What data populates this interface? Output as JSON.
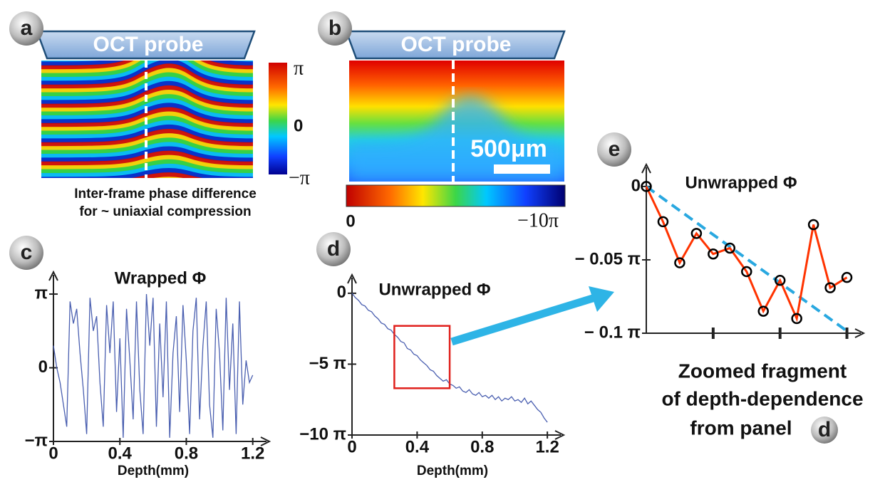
{
  "panel_a": {
    "label": "a",
    "probe": "OCT probe",
    "colorbar_labels": [
      "π",
      "0",
      "−π"
    ],
    "caption": [
      "Inter-frame phase difference",
      "for ~ uniaxial compression"
    ]
  },
  "panel_b": {
    "label": "b",
    "probe": "OCT probe",
    "scale_bar": "500μm",
    "colorbar_labels": [
      "0",
      "−10π"
    ]
  },
  "chart_data": [
    {
      "type": "line",
      "panel": "c",
      "title": "Wrapped Φ",
      "x_label": "Depth(mm)",
      "color": "#4a5fb0",
      "xlim": [
        0,
        1.3
      ],
      "xticks": [
        0,
        0.4,
        0.8,
        1.2
      ],
      "ylim": [
        -1,
        1.3
      ],
      "yticks": [
        {
          "value": -1,
          "label": "−π"
        },
        0,
        {
          "value": 1,
          "label": "π"
        }
      ],
      "x": [
        0,
        0.02,
        0.04,
        0.06,
        0.08,
        0.1,
        0.12,
        0.14,
        0.16,
        0.18,
        0.2,
        0.22,
        0.24,
        0.26,
        0.28,
        0.3,
        0.32,
        0.34,
        0.36,
        0.38,
        0.4,
        0.42,
        0.44,
        0.46,
        0.48,
        0.5,
        0.52,
        0.54,
        0.56,
        0.58,
        0.6,
        0.62,
        0.64,
        0.66,
        0.68,
        0.7,
        0.72,
        0.74,
        0.76,
        0.78,
        0.8,
        0.82,
        0.84,
        0.86,
        0.88,
        0.9,
        0.92,
        0.94,
        0.96,
        0.98,
        1.0,
        1.02,
        1.04,
        1.06,
        1.08,
        1.1,
        1.12,
        1.14,
        1.16,
        1.18,
        1.2
      ],
      "values": [
        0.3,
        0.0,
        -0.2,
        -0.5,
        -0.8,
        0.9,
        0.6,
        0.8,
        0.2,
        -0.3,
        -0.9,
        0.95,
        0.5,
        0.7,
        -0.2,
        -0.8,
        0.85,
        0.2,
        0.9,
        -0.6,
        0.4,
        -0.95,
        0.8,
        0.1,
        -0.7,
        0.9,
        -0.3,
        -0.9,
        1.0,
        0.3,
        0.95,
        -0.8,
        0.6,
        -0.4,
        0.9,
        -0.95,
        0.2,
        0.7,
        -0.6,
        0.85,
        0.1,
        -0.9,
        0.5,
        0.95,
        -0.7,
        0.3,
        0.9,
        -0.5,
        -0.95,
        0.8,
        0.2,
        -0.85,
        0.95,
        -0.3,
        0.6,
        -0.9,
        0.9,
        -0.5,
        0.1,
        -0.2,
        -0.1
      ]
    },
    {
      "type": "line",
      "panel": "d",
      "title": "Unwrapped Φ",
      "x_label": "Depth(mm)",
      "color": "#4a5fb0",
      "xlim": [
        0,
        1.3
      ],
      "xticks": [
        0,
        0.4,
        0.8,
        1.2
      ],
      "ylim": [
        -10,
        1.3
      ],
      "yticks": [
        {
          "value": -10,
          "label": "−10 π"
        },
        {
          "value": -5,
          "label": "−5 π"
        },
        0
      ],
      "zoom_box": {
        "x": [
          0.26,
          0.6
        ],
        "y": [
          -2.3,
          -6.7
        ],
        "color": "#e0201c"
      },
      "x": [
        0,
        0.02,
        0.04,
        0.06,
        0.08,
        0.1,
        0.12,
        0.14,
        0.16,
        0.18,
        0.2,
        0.22,
        0.24,
        0.26,
        0.28,
        0.3,
        0.32,
        0.34,
        0.36,
        0.38,
        0.4,
        0.42,
        0.44,
        0.46,
        0.48,
        0.5,
        0.52,
        0.54,
        0.56,
        0.58,
        0.6,
        0.62,
        0.64,
        0.66,
        0.68,
        0.7,
        0.72,
        0.74,
        0.76,
        0.78,
        0.8,
        0.82,
        0.84,
        0.86,
        0.88,
        0.9,
        0.92,
        0.94,
        0.96,
        0.98,
        1.0,
        1.02,
        1.04,
        1.06,
        1.08,
        1.1,
        1.12,
        1.14,
        1.16,
        1.18,
        1.2
      ],
      "values": [
        0,
        -0.3,
        -0.5,
        -0.8,
        -0.9,
        -1.2,
        -1.3,
        -1.6,
        -1.8,
        -2.1,
        -2.2,
        -2.5,
        -2.6,
        -2.9,
        -3.1,
        -3.4,
        -3.5,
        -3.9,
        -4.0,
        -4.3,
        -4.4,
        -4.7,
        -4.9,
        -5.1,
        -5.4,
        -5.5,
        -5.8,
        -6.0,
        -6.2,
        -6.1,
        -6.4,
        -6.5,
        -6.7,
        -6.6,
        -6.9,
        -7.0,
        -6.8,
        -7.1,
        -7.2,
        -7.0,
        -7.3,
        -7.2,
        -7.4,
        -7.2,
        -7.5,
        -7.3,
        -7.6,
        -7.4,
        -7.5,
        -7.3,
        -7.6,
        -7.5,
        -7.7,
        -7.4,
        -7.8,
        -7.6,
        -7.9,
        -8.2,
        -8.4,
        -8.8,
        -9.1
      ]
    },
    {
      "type": "line",
      "panel": "e",
      "title": "Unwrapped Φ",
      "markers": true,
      "color": "#ff3300",
      "marker_color": "#000000",
      "caption": [
        "Zoomed fragment",
        "of depth-dependence",
        "from panel"
      ],
      "caption_ref": "d",
      "xlim": [
        0,
        13
      ],
      "xticks": [
        {
          "value": 4,
          "label": null
        },
        {
          "value": 8,
          "label": null
        },
        {
          "value": 12,
          "label": null
        }
      ],
      "ylim": [
        -0.1,
        0.015
      ],
      "yticks": [
        {
          "value": -0.1,
          "label": "− 0.1 π"
        },
        {
          "value": -0.05,
          "label": "− 0.05 π"
        },
        0
      ],
      "trend": {
        "color": "#29a8e0",
        "x": [
          0,
          12
        ],
        "values": [
          0,
          -0.0985
        ]
      },
      "x": [
        0,
        1,
        2,
        3,
        4,
        5,
        6,
        7,
        8,
        9,
        10,
        11,
        12
      ],
      "values": [
        0,
        -0.024,
        -0.052,
        -0.032,
        -0.046,
        -0.042,
        -0.058,
        -0.085,
        -0.064,
        -0.09,
        -0.026,
        -0.069,
        -0.062
      ]
    }
  ]
}
